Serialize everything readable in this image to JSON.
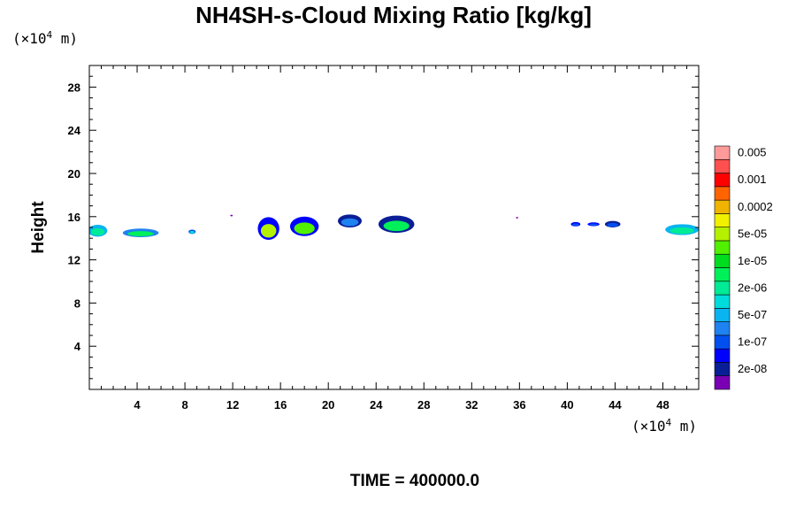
{
  "chart_data": {
    "type": "heatmap",
    "title": "NH4SH-s-Cloud Mixing Ratio [kg/kg]",
    "ylabel": "Height",
    "xlabel": "",
    "x_unit": {
      "prefix": "(×10",
      "exp": "4",
      "suffix": " m)"
    },
    "y_unit": {
      "prefix": "(×10",
      "exp": "4",
      "suffix": " m)"
    },
    "xlim": [
      0,
      51
    ],
    "ylim": [
      0,
      30
    ],
    "xticks": [
      4,
      8,
      12,
      16,
      20,
      24,
      28,
      32,
      36,
      40,
      44,
      48
    ],
    "xtick_labels": [
      "4",
      "8",
      "12",
      "16",
      "20",
      "24",
      "28",
      "32",
      "36",
      "40",
      "44",
      "48"
    ],
    "yticks": [
      4,
      8,
      12,
      16,
      20,
      24,
      28
    ],
    "ytick_labels": [
      "4",
      "8",
      "12",
      "16",
      "20",
      "24",
      "28"
    ],
    "colorbar": {
      "colors": [
        "#7a00b4",
        "#0a1e96",
        "#0000ff",
        "#0050f0",
        "#1e82f0",
        "#0ab4f0",
        "#00dcdc",
        "#00eb96",
        "#00f05a",
        "#00dc1e",
        "#50f000",
        "#b4f000",
        "#f0f000",
        "#f0b400",
        "#ff6400",
        "#ff0000",
        "#ff5050",
        "#ff9a9a"
      ],
      "labels": [
        "2e-08",
        "1e-07",
        "5e-07",
        "2e-06",
        "1e-05",
        "5e-05",
        "0.0002",
        "0.001",
        "0.005"
      ]
    },
    "cloud_patches": [
      {
        "x": 0.7,
        "y": 14.7,
        "w": 1.6,
        "h": 1.1,
        "color": "#0ab4f0",
        "core": "#00eb96"
      },
      {
        "x": 4.3,
        "y": 14.5,
        "w": 3.0,
        "h": 0.8,
        "color": "#1e82f0",
        "core": "#00f05a"
      },
      {
        "x": 8.6,
        "y": 14.6,
        "w": 0.6,
        "h": 0.4,
        "color": "#0050f0",
        "core": "#00dcdc"
      },
      {
        "x": 15.0,
        "y": 14.9,
        "w": 1.8,
        "h": 2.1,
        "color": "#0000ff",
        "core": "#b4f000"
      },
      {
        "x": 18.0,
        "y": 15.1,
        "w": 2.4,
        "h": 1.8,
        "color": "#0000ff",
        "core": "#50f000"
      },
      {
        "x": 21.8,
        "y": 15.6,
        "w": 2.0,
        "h": 1.2,
        "color": "#0a1e96",
        "core": "#1e82f0"
      },
      {
        "x": 25.7,
        "y": 15.3,
        "w": 3.0,
        "h": 1.6,
        "color": "#0a1e96",
        "core": "#00f05a"
      },
      {
        "x": 40.7,
        "y": 15.3,
        "w": 0.8,
        "h": 0.4,
        "color": "#0000ff",
        "core": "#0050f0"
      },
      {
        "x": 42.2,
        "y": 15.3,
        "w": 1.0,
        "h": 0.35,
        "color": "#0000ff",
        "core": "#0050f0"
      },
      {
        "x": 43.8,
        "y": 15.3,
        "w": 1.3,
        "h": 0.6,
        "color": "#0a1e96",
        "core": "#0050f0"
      },
      {
        "x": 49.6,
        "y": 14.8,
        "w": 2.8,
        "h": 1.0,
        "color": "#0ab4f0",
        "core": "#00eb96"
      },
      {
        "x": 11.9,
        "y": 16.1,
        "w": 0.2,
        "h": 0.15,
        "color": "#7a00b4",
        "core": "#7a00b4"
      },
      {
        "x": 35.8,
        "y": 15.9,
        "w": 0.2,
        "h": 0.15,
        "color": "#7a00b4",
        "core": "#7a00b4"
      }
    ]
  },
  "time_label": "TIME = 400000.0"
}
